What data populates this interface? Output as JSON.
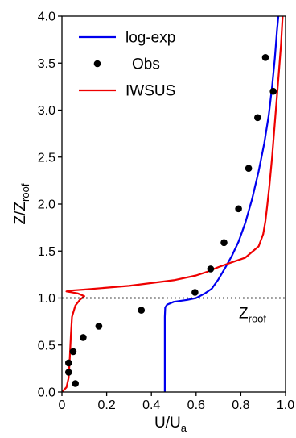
{
  "chart_data": {
    "type": "line",
    "title": "",
    "xlabel": "U/U",
    "xlabel_sub": "a",
    "ylabel": "Z/Z",
    "ylabel_sub": "roof",
    "xlim": [
      0,
      1.0
    ],
    "ylim": [
      0,
      4.0
    ],
    "x_ticks": [
      0,
      0.2,
      0.4,
      0.6,
      0.8,
      1.0
    ],
    "x_tick_labels": [
      "0",
      "0.2",
      "0.4",
      "0.6",
      "0.8",
      "1.0"
    ],
    "y_ticks": [
      0,
      0.5,
      1.0,
      1.5,
      2.0,
      2.5,
      3.0,
      3.5,
      4.0
    ],
    "y_tick_labels": [
      "0.0",
      "0.5",
      "1.0",
      "1.5",
      "2.0",
      "2.5",
      "3.0",
      "3.5",
      "4.0"
    ],
    "grid": false,
    "legend_position": "top-left",
    "reference_line": {
      "y": 1.0,
      "style": "dotted",
      "label": "Z",
      "label_sub": "roof"
    },
    "series": [
      {
        "name": "log-exp",
        "kind": "line",
        "color": "#0000ee",
        "points": [
          [
            0.46,
            0.0
          ],
          [
            0.46,
            0.4
          ],
          [
            0.46,
            0.8
          ],
          [
            0.462,
            0.9
          ],
          [
            0.47,
            0.93
          ],
          [
            0.5,
            0.96
          ],
          [
            0.56,
            0.98
          ],
          [
            0.6,
            1.0
          ],
          [
            0.64,
            1.05
          ],
          [
            0.67,
            1.1
          ],
          [
            0.7,
            1.2
          ],
          [
            0.73,
            1.32
          ],
          [
            0.76,
            1.45
          ],
          [
            0.79,
            1.6
          ],
          [
            0.82,
            1.8
          ],
          [
            0.85,
            2.05
          ],
          [
            0.88,
            2.35
          ],
          [
            0.905,
            2.65
          ],
          [
            0.925,
            2.95
          ],
          [
            0.94,
            3.25
          ],
          [
            0.952,
            3.55
          ],
          [
            0.962,
            3.85
          ],
          [
            0.968,
            4.0
          ]
        ]
      },
      {
        "name": "Obs",
        "kind": "scatter",
        "color": "#000000",
        "points": [
          [
            0.06,
            0.09
          ],
          [
            0.03,
            0.21
          ],
          [
            0.03,
            0.31
          ],
          [
            0.05,
            0.43
          ],
          [
            0.095,
            0.58
          ],
          [
            0.165,
            0.7
          ],
          [
            0.355,
            0.87
          ],
          [
            0.595,
            1.06
          ],
          [
            0.665,
            1.31
          ],
          [
            0.725,
            1.59
          ],
          [
            0.79,
            1.95
          ],
          [
            0.835,
            2.38
          ],
          [
            0.875,
            2.92
          ],
          [
            0.945,
            3.2
          ],
          [
            0.91,
            3.56
          ]
        ]
      },
      {
        "name": "IWSUS",
        "kind": "line",
        "color": "#ee0000",
        "points": [
          [
            0.0,
            0.0
          ],
          [
            0.02,
            0.05
          ],
          [
            0.03,
            0.15
          ],
          [
            0.035,
            0.35
          ],
          [
            0.04,
            0.6
          ],
          [
            0.045,
            0.8
          ],
          [
            0.06,
            0.92
          ],
          [
            0.08,
            0.98
          ],
          [
            0.1,
            1.02
          ],
          [
            0.07,
            1.05
          ],
          [
            0.02,
            1.07
          ],
          [
            0.04,
            1.08
          ],
          [
            0.1,
            1.09
          ],
          [
            0.3,
            1.13
          ],
          [
            0.5,
            1.19
          ],
          [
            0.6,
            1.24
          ],
          [
            0.65,
            1.28
          ],
          [
            0.7,
            1.33
          ],
          [
            0.76,
            1.38
          ],
          [
            0.82,
            1.43
          ],
          [
            0.88,
            1.55
          ],
          [
            0.9,
            1.68
          ],
          [
            0.91,
            1.82
          ],
          [
            0.918,
            1.98
          ],
          [
            0.928,
            2.2
          ],
          [
            0.94,
            2.5
          ],
          [
            0.95,
            2.8
          ],
          [
            0.96,
            3.1
          ],
          [
            0.97,
            3.4
          ],
          [
            0.98,
            3.7
          ],
          [
            0.987,
            4.0
          ]
        ]
      }
    ]
  }
}
